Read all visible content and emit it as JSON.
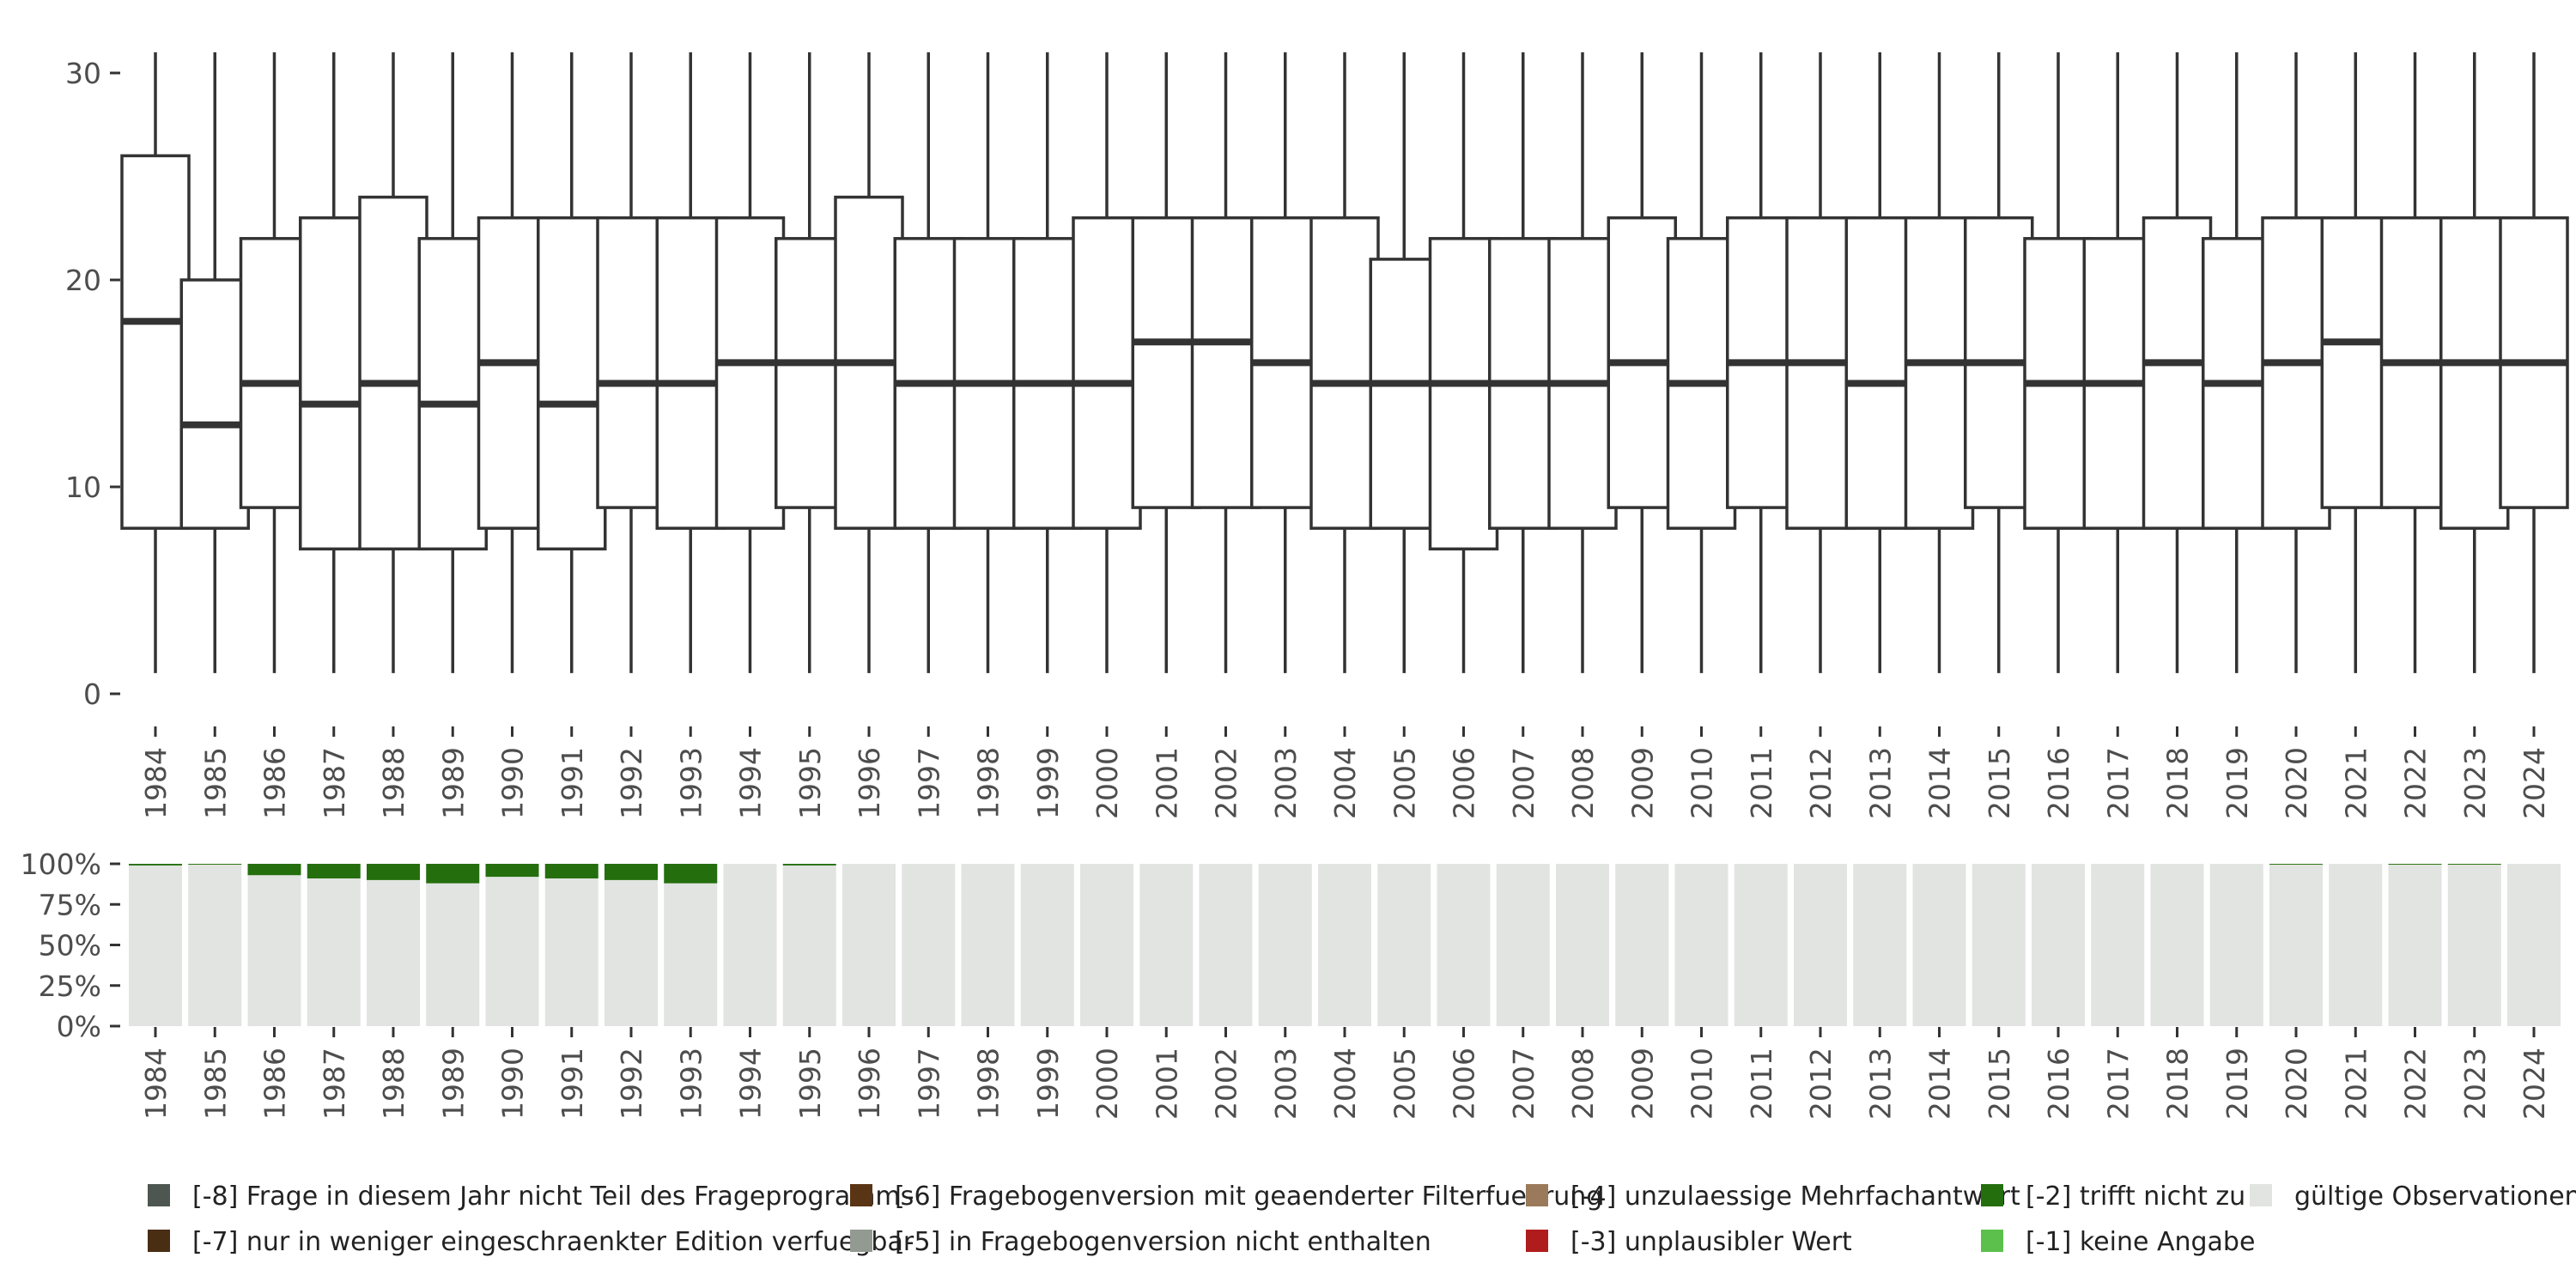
{
  "chart_data": [
    {
      "type": "boxplot",
      "title": "",
      "xlabel": "",
      "ylabel": "",
      "ylim": [
        0,
        30
      ],
      "yticks": [
        0,
        10,
        20,
        30
      ],
      "categories": [
        "1984",
        "1985",
        "1986",
        "1987",
        "1988",
        "1989",
        "1990",
        "1991",
        "1992",
        "1993",
        "1994",
        "1995",
        "1996",
        "1997",
        "1998",
        "1999",
        "2000",
        "2001",
        "2002",
        "2003",
        "2004",
        "2005",
        "2006",
        "2007",
        "2008",
        "2009",
        "2010",
        "2011",
        "2012",
        "2013",
        "2014",
        "2015",
        "2016",
        "2017",
        "2018",
        "2019",
        "2020",
        "2021",
        "2022",
        "2023",
        "2024"
      ],
      "series": [
        {
          "whisker_low": [
            1,
            1,
            1,
            1,
            1,
            1,
            1,
            1,
            1,
            1,
            1,
            1,
            1,
            1,
            1,
            1,
            1,
            1,
            1,
            1,
            1,
            1,
            1,
            1,
            1,
            1,
            1,
            1,
            1,
            1,
            1,
            1,
            1,
            1,
            1,
            1,
            1,
            1,
            1,
            1,
            1
          ],
          "q1": [
            8,
            8,
            9,
            7,
            7,
            7,
            8,
            7,
            9,
            8,
            8,
            9,
            8,
            8,
            8,
            8,
            8,
            9,
            9,
            9,
            8,
            8,
            7,
            8,
            8,
            9,
            8,
            9,
            8,
            8,
            8,
            9,
            8,
            8,
            8,
            8,
            8,
            9,
            9,
            8,
            9
          ],
          "median": [
            18,
            13,
            15,
            14,
            15,
            14,
            16,
            14,
            15,
            15,
            16,
            16,
            16,
            15,
            15,
            15,
            15,
            17,
            17,
            16,
            15,
            15,
            15,
            15,
            15,
            16,
            15,
            16,
            16,
            15,
            16,
            16,
            15,
            15,
            16,
            15,
            16,
            17,
            16,
            16,
            16
          ],
          "q3": [
            26,
            20,
            22,
            23,
            24,
            22,
            23,
            23,
            23,
            23,
            23,
            22,
            24,
            22,
            22,
            22,
            23,
            23,
            23,
            23,
            23,
            21,
            22,
            22,
            22,
            23,
            22,
            23,
            23,
            23,
            23,
            23,
            22,
            22,
            23,
            22,
            23,
            23,
            23,
            23,
            23
          ],
          "whisker_high": [
            31,
            31,
            31,
            31,
            31,
            31,
            31,
            31,
            31,
            31,
            31,
            31,
            31,
            31,
            31,
            31,
            31,
            31,
            31,
            31,
            31,
            31,
            31,
            31,
            31,
            31,
            31,
            31,
            31,
            31,
            31,
            31,
            31,
            31,
            31,
            31,
            31,
            31,
            31,
            31,
            31
          ]
        }
      ]
    },
    {
      "type": "bar",
      "stacked": true,
      "ylim": [
        0,
        1
      ],
      "yticks": [
        "0%",
        "25%",
        "50%",
        "75%",
        "100%"
      ],
      "categories": [
        "1984",
        "1985",
        "1986",
        "1987",
        "1988",
        "1989",
        "1990",
        "1991",
        "1992",
        "1993",
        "1994",
        "1995",
        "1996",
        "1997",
        "1998",
        "1999",
        "2000",
        "2001",
        "2002",
        "2003",
        "2004",
        "2005",
        "2006",
        "2007",
        "2008",
        "2009",
        "2010",
        "2011",
        "2012",
        "2013",
        "2014",
        "2015",
        "2016",
        "2017",
        "2018",
        "2019",
        "2020",
        "2021",
        "2022",
        "2023",
        "2024"
      ],
      "series": [
        {
          "name": "[-2] trifft nicht zu",
          "color": "#246e0e",
          "values": [
            0.01,
            0.005,
            0.07,
            0.09,
            0.1,
            0.12,
            0.08,
            0.09,
            0.1,
            0.12,
            0,
            0.01,
            0,
            0,
            0,
            0,
            0,
            0,
            0,
            0,
            0,
            0,
            0,
            0,
            0,
            0,
            0,
            0,
            0,
            0,
            0,
            0,
            0,
            0,
            0,
            0,
            0.005,
            0,
            0.005,
            0.005,
            0
          ]
        },
        {
          "name": "gültige Observationen",
          "color": "#e1e4e0",
          "values": [
            0.99,
            0.995,
            0.93,
            0.91,
            0.9,
            0.88,
            0.92,
            0.91,
            0.9,
            0.88,
            1,
            0.99,
            1,
            1,
            1,
            1,
            1,
            1,
            1,
            1,
            1,
            1,
            1,
            1,
            1,
            1,
            1,
            1,
            1,
            1,
            1,
            1,
            1,
            1,
            1,
            1,
            0.995,
            1,
            0.995,
            0.995,
            1
          ]
        }
      ]
    }
  ],
  "legend": {
    "items": [
      {
        "label": "[-8] Frage in diesem Jahr nicht Teil des Frageprogramms",
        "color": "#4d5650"
      },
      {
        "label": "[-7] nur in weniger eingeschraenkter Edition verfuegbar",
        "color": "#4a2e14"
      },
      {
        "label": "[-6] Fragebogenversion mit geaenderter Filterfuehrung",
        "color": "#5a3515"
      },
      {
        "label": "[-5] in Fragebogenversion nicht enthalten",
        "color": "#939a91"
      },
      {
        "label": "[-4] unzulaessige Mehrfachantwort",
        "color": "#9a7a5a"
      },
      {
        "label": "[-3] unplausibler Wert",
        "color": "#b01c1c"
      },
      {
        "label": "[-2] trifft nicht zu",
        "color": "#246e0e"
      },
      {
        "label": "[-1] keine Angabe",
        "color": "#5cc04c"
      },
      {
        "label": "gültige Observationen",
        "color": "#e1e4e0"
      }
    ]
  },
  "colors": {
    "box_stroke": "#333333",
    "axis_text": "#4d4d4d",
    "tick": "#333333"
  }
}
